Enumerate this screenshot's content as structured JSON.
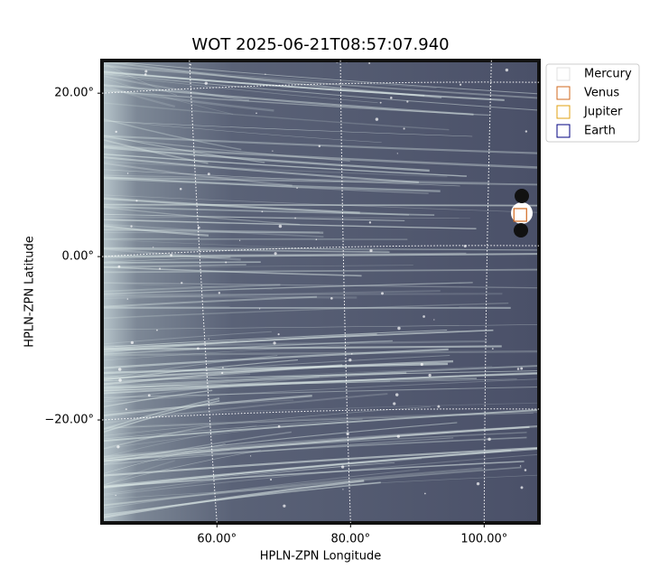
{
  "chart_data": {
    "type": "image",
    "title": "WOT 2025-06-21T08:57:07.940",
    "x_label": "HPLN-ZPN Longitude",
    "y_label": "HPLN-ZPN Latitude",
    "xlim": [
      42.8,
      108.2
    ],
    "ylim": [
      -32.6,
      24
    ],
    "xticks": [
      {
        "value": 60,
        "label": "60.00°"
      },
      {
        "value": 80,
        "label": "80.00°"
      },
      {
        "value": 100,
        "label": "100.00°"
      }
    ],
    "yticks": [
      {
        "value": -20,
        "label": "−20.00°"
      },
      {
        "value": 0,
        "label": "0.00°"
      },
      {
        "value": 20,
        "label": "20.00°"
      }
    ],
    "grid": true,
    "legend": "upper right outside",
    "series": [
      {
        "name": "Mercury",
        "color": "#e0e0e0"
      },
      {
        "name": "Venus",
        "color": "#d2691e",
        "x": [
          105.4
        ],
        "y": [
          5.1
        ]
      },
      {
        "name": "Jupiter",
        "color": "#e0a010"
      },
      {
        "name": "Earth",
        "color": "#000080"
      }
    ]
  }
}
